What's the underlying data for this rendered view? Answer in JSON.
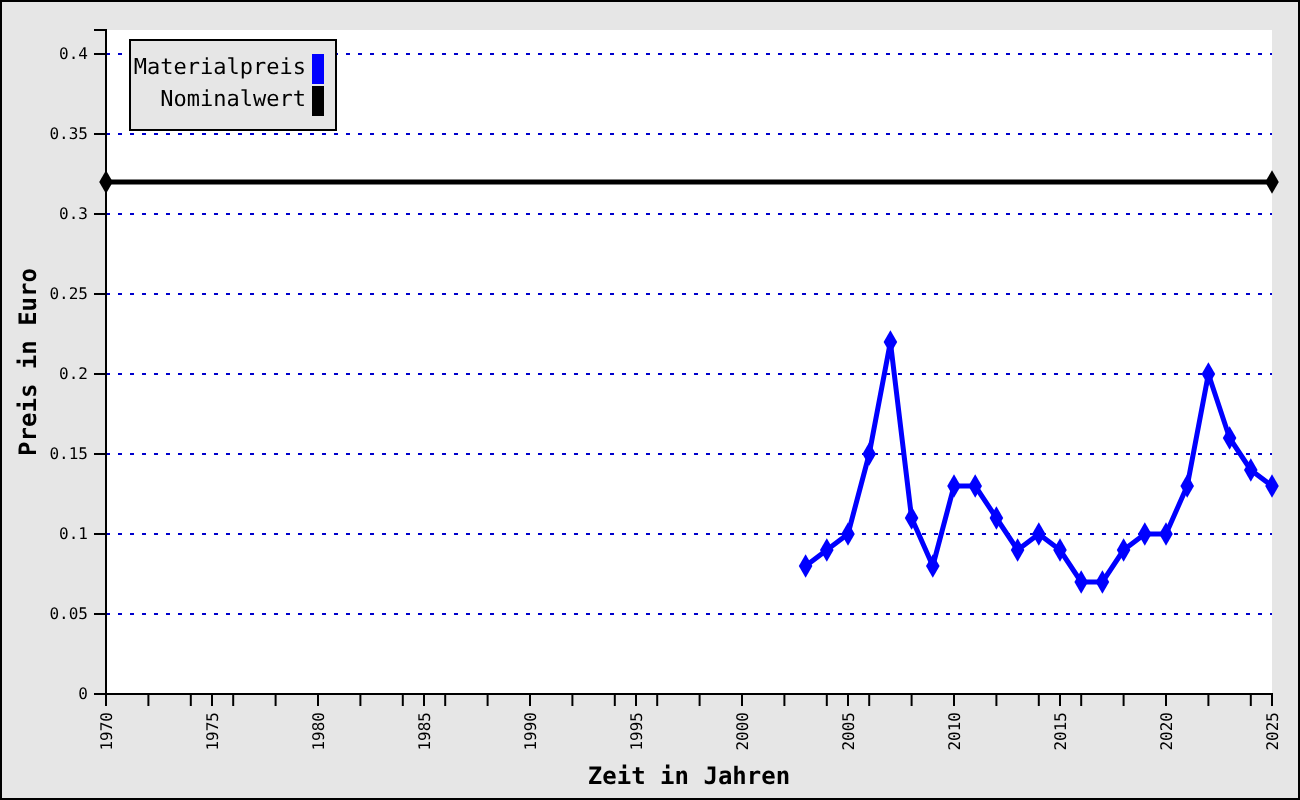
{
  "chart_data": {
    "type": "line",
    "xlabel": "Zeit in Jahren",
    "ylabel": "Preis in Euro",
    "xlim": [
      1970,
      2025
    ],
    "ylim": [
      0,
      0.415
    ],
    "xticks": [
      1970,
      {
        "value": 1972,
        "label": null
      },
      {
        "value": 1974,
        "label": null
      },
      1975,
      {
        "value": 1976,
        "label": null
      },
      {
        "value": 1978,
        "label": null
      },
      1980,
      {
        "value": 1982,
        "label": null
      },
      {
        "value": 1984,
        "label": null
      },
      1985,
      {
        "value": 1986,
        "label": null
      },
      {
        "value": 1988,
        "label": null
      },
      1990,
      {
        "value": 1992,
        "label": null
      },
      {
        "value": 1994,
        "label": null
      },
      1995,
      {
        "value": 1996,
        "label": null
      },
      {
        "value": 1998,
        "label": null
      },
      2000,
      {
        "value": 2002,
        "label": null
      },
      {
        "value": 2004,
        "label": null
      },
      2005,
      {
        "value": 2006,
        "label": null
      },
      {
        "value": 2008,
        "label": null
      },
      2010,
      {
        "value": 2012,
        "label": null
      },
      {
        "value": 2014,
        "label": null
      },
      2015,
      {
        "value": 2016,
        "label": null
      },
      {
        "value": 2018,
        "label": null
      },
      2020,
      {
        "value": 2022,
        "label": null
      },
      {
        "value": 2024,
        "label": null
      },
      2025
    ],
    "yticks": [
      0,
      0.05,
      0.1,
      0.15,
      0.2,
      0.25,
      0.3,
      0.35,
      0.4
    ],
    "grid": "y",
    "legend": "top left",
    "marker": "diamond",
    "line_style": "solid",
    "series": [
      {
        "name": "Materialpreis",
        "color": "#0000ff",
        "x": [
          2003,
          2004,
          2005,
          2006,
          2007,
          2008,
          2009,
          2010,
          2011,
          2012,
          2013,
          2014,
          2015,
          2016,
          2017,
          2018,
          2019,
          2020,
          2021,
          2022,
          2023,
          2024,
          2025
        ],
        "values": [
          0.08,
          0.09,
          0.1,
          0.15,
          0.22,
          0.11,
          0.08,
          0.13,
          0.13,
          0.11,
          0.09,
          0.1,
          0.09,
          0.07,
          0.07,
          0.09,
          0.1,
          0.1,
          0.13,
          0.2,
          0.16,
          0.14,
          0.13
        ]
      },
      {
        "name": "Nominalwert",
        "color": "#000000",
        "x": [
          1970,
          2025
        ],
        "values": [
          0.32,
          0.32
        ]
      }
    ]
  }
}
